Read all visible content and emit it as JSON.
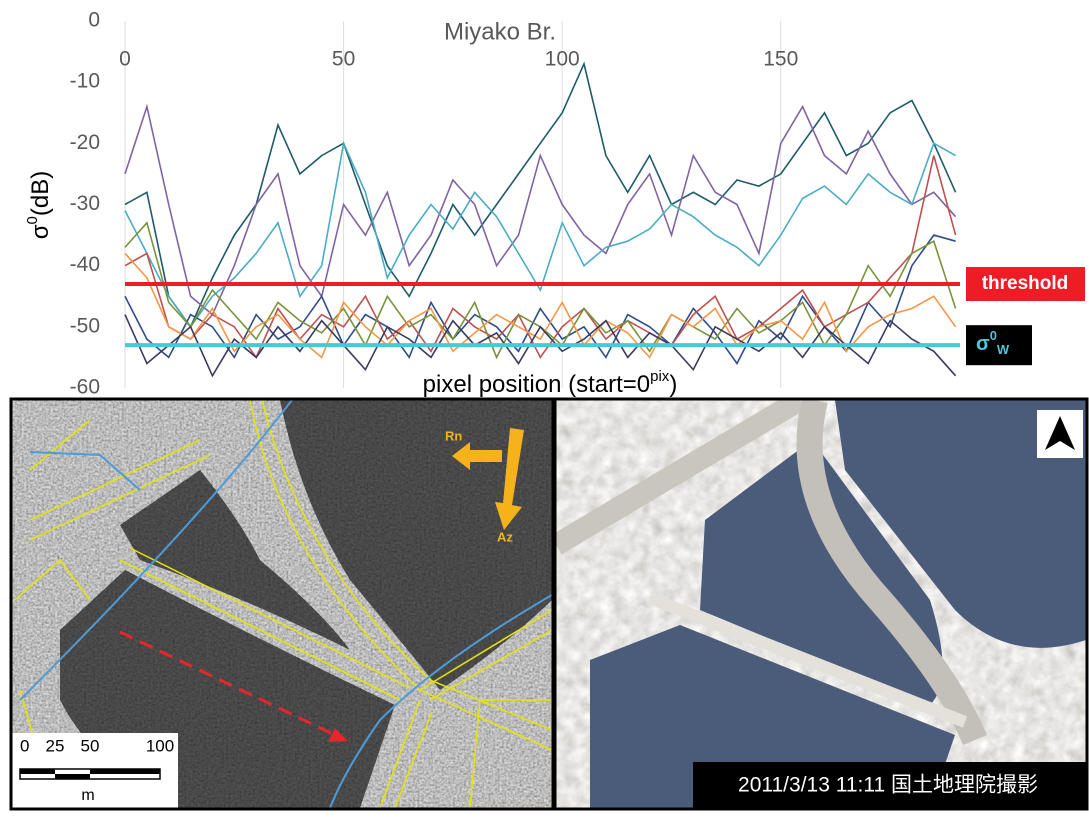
{
  "chart_data": {
    "type": "line",
    "title": "Miyako Br.",
    "y_label": [
      "σ",
      "0",
      "(dB)"
    ],
    "x_label": [
      "pixel position (start=0",
      "pix",
      ")"
    ],
    "x": [
      0,
      5,
      10,
      15,
      20,
      25,
      30,
      35,
      40,
      45,
      50,
      55,
      60,
      65,
      70,
      75,
      80,
      85,
      90,
      95,
      100,
      105,
      110,
      115,
      120,
      125,
      130,
      135,
      140,
      145,
      150,
      155,
      160,
      165,
      170,
      175,
      180,
      185,
      190
    ],
    "xlim": [
      0,
      191
    ],
    "xticks": [
      0,
      50,
      100,
      150
    ],
    "ylim": [
      -60,
      0
    ],
    "yticks": [
      0,
      -10,
      -20,
      -30,
      -40,
      -50,
      -60
    ],
    "grid": "x",
    "series": [
      {
        "color": "#1f5a6b",
        "values": [
          -30,
          -28,
          -45,
          -50,
          -42,
          -35,
          -30,
          -17,
          -25,
          -22,
          -20,
          -30,
          -40,
          -45,
          -38,
          -30,
          -35,
          -30,
          -25,
          -20,
          -15,
          -7,
          -22,
          -28,
          -22,
          -30,
          -28,
          -30,
          -26,
          -27,
          -25,
          -20,
          -15,
          -22,
          -20,
          -15,
          -13,
          -20,
          -28
        ]
      },
      {
        "color": "#8064a2",
        "values": [
          -25,
          -14,
          -30,
          -45,
          -48,
          -40,
          -30,
          -25,
          -40,
          -45,
          -30,
          -35,
          -28,
          -40,
          -35,
          -26,
          -30,
          -40,
          -35,
          -22,
          -30,
          -35,
          -38,
          -30,
          -25,
          -35,
          -22,
          -28,
          -30,
          -38,
          -20,
          -14,
          -22,
          -25,
          -18,
          -25,
          -30,
          -28,
          -32
        ]
      },
      {
        "color": "#4bacc6",
        "values": [
          -31,
          -38,
          -45,
          -50,
          -45,
          -42,
          -38,
          -33,
          -45,
          -40,
          -20,
          -28,
          -42,
          -35,
          -30,
          -34,
          -28,
          -32,
          -38,
          -44,
          -33,
          -40,
          -37,
          -36,
          -34,
          -30,
          -32,
          -35,
          -37,
          -40,
          -35,
          -29,
          -27,
          -30,
          -25,
          -28,
          -30,
          -20,
          -22
        ]
      },
      {
        "color": "#2e4b8a",
        "values": [
          -45,
          -52,
          -55,
          -48,
          -50,
          -55,
          -48,
          -52,
          -50,
          -45,
          -53,
          -48,
          -50,
          -55,
          -46,
          -52,
          -48,
          -50,
          -54,
          -47,
          -52,
          -50,
          -55,
          -48,
          -50,
          -53,
          -47,
          -51,
          -56,
          -49,
          -52,
          -45,
          -50,
          -54,
          -46,
          -50,
          -40,
          -35,
          -36
        ]
      },
      {
        "color": "#c0504d",
        "values": [
          -40,
          -38,
          -50,
          -52,
          -48,
          -50,
          -55,
          -47,
          -52,
          -48,
          -50,
          -45,
          -52,
          -49,
          -54,
          -47,
          -50,
          -52,
          -48,
          -55,
          -50,
          -47,
          -52,
          -49,
          -51,
          -53,
          -48,
          -45,
          -52,
          -50,
          -47,
          -44,
          -50,
          -48,
          -46,
          -42,
          -38,
          -22,
          -35
        ]
      },
      {
        "color": "#77933c",
        "values": [
          -37,
          -33,
          -46,
          -50,
          -44,
          -48,
          -52,
          -46,
          -49,
          -51,
          -47,
          -53,
          -45,
          -50,
          -48,
          -52,
          -46,
          -55,
          -48,
          -50,
          -53,
          -47,
          -51,
          -49,
          -54,
          -48,
          -50,
          -52,
          -47,
          -51,
          -49,
          -46,
          -53,
          -48,
          -40,
          -45,
          -38,
          -36,
          -47
        ]
      },
      {
        "color": "#f79646",
        "values": [
          -38,
          -42,
          -50,
          -52,
          -47,
          -54,
          -50,
          -48,
          -52,
          -55,
          -46,
          -50,
          -53,
          -49,
          -47,
          -54,
          -51,
          -48,
          -50,
          -52,
          -46,
          -53,
          -49,
          -51,
          -55,
          -48,
          -50,
          -47,
          -53,
          -50,
          -49,
          -52,
          -46,
          -54,
          -50,
          -48,
          -47,
          -45,
          -50
        ]
      },
      {
        "color": "#3b3a5e",
        "values": [
          -48,
          -56,
          -53,
          -50,
          -58,
          -52,
          -55,
          -50,
          -54,
          -49,
          -53,
          -57,
          -50,
          -52,
          -55,
          -49,
          -53,
          -51,
          -56,
          -50,
          -54,
          -52,
          -49,
          -55,
          -51,
          -53,
          -57,
          -50,
          -52,
          -54,
          -51,
          -55,
          -50,
          -53,
          -56,
          -49,
          -52,
          -54,
          -58
        ]
      }
    ],
    "reference_lines": [
      {
        "value": -43,
        "color": "#ee1c25",
        "label": [
          "threshold"
        ]
      },
      {
        "value": -53,
        "color": "#4cc6d8",
        "label": [
          "σ",
          "0",
          "W"
        ]
      }
    ]
  },
  "images": {
    "sar": {
      "range_label": "Rn",
      "azimuth_label": "Az",
      "scale_ticks": [
        0,
        25,
        50,
        100
      ],
      "scale_unit": "m"
    },
    "photo": {
      "caption": "2011/3/13 11:11 国土地理院撮影"
    }
  }
}
